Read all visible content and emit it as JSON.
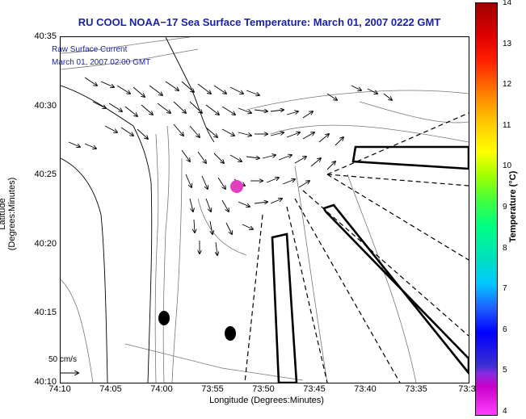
{
  "title": "RU COOL  NOAA−17  Sea Surface Temperature:  March 01, 2007 0222 GMT",
  "overlay": {
    "raw_label": "Raw Surface Current",
    "raw_time": "March 01, 2007 02:00 GMT",
    "scale_label": "50 cm/s"
  },
  "axes": {
    "xlabel": "Longitude (Degrees:Minutes)",
    "ylabel": "Latitude (Degrees:Minutes)",
    "xticks": [
      "74:10",
      "74:05",
      "74:00",
      "73:55",
      "73:50",
      "73:45",
      "73:40",
      "73:35",
      "73:3"
    ],
    "yticks": [
      "40:35",
      "40:30",
      "40:25",
      "40:20",
      "40:15",
      "40:10"
    ]
  },
  "colorbar": {
    "label": "Temperature (°C)",
    "ticks": [
      "14",
      "13",
      "12",
      "11",
      "10",
      "9",
      "8",
      "7",
      "6",
      "5",
      "4"
    ]
  },
  "colors": {
    "title": "#1a22a8",
    "sst_patch": "#e040c0",
    "contour": "#777777"
  }
}
